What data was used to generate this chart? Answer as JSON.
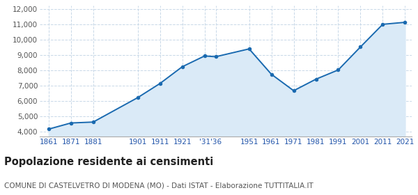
{
  "years": [
    1861,
    1871,
    1881,
    1901,
    1911,
    1921,
    1931,
    1936,
    1951,
    1961,
    1971,
    1981,
    1991,
    2001,
    2011,
    2021
  ],
  "population": [
    4180,
    4580,
    4640,
    6230,
    7150,
    8240,
    8940,
    8890,
    9400,
    7750,
    6680,
    7430,
    8030,
    9530,
    11000,
    11130
  ],
  "x_labels": [
    "1861",
    "1871",
    "1881",
    "1901",
    "1911",
    "1921",
    "'31",
    "'36",
    "1951",
    "1961",
    "1971",
    "1981",
    "1991",
    "2001",
    "2011",
    "2021"
  ],
  "line_color": "#1a6ab0",
  "fill_color": "#daeaf7",
  "marker_color": "#1a6ab0",
  "grid_color": "#c8d8e8",
  "background_color": "#ffffff",
  "title": "Popolazione residente ai censimenti",
  "subtitle": "COMUNE DI CASTELVETRO DI MODENA (MO) - Dati ISTAT - Elaborazione TUTTITALIA.IT",
  "ylim": [
    3700,
    12200
  ],
  "yticks": [
    4000,
    5000,
    6000,
    7000,
    8000,
    9000,
    10000,
    11000,
    12000
  ],
  "ytick_labels": [
    "4,000",
    "5,000",
    "6,000",
    "7,000",
    "8,000",
    "9,000",
    "10,000",
    "11,000",
    "12,000"
  ],
  "title_fontsize": 10.5,
  "subtitle_fontsize": 7.5,
  "tick_fontsize": 7.5,
  "label_color_x": "#2255aa",
  "label_color_y": "#555555"
}
